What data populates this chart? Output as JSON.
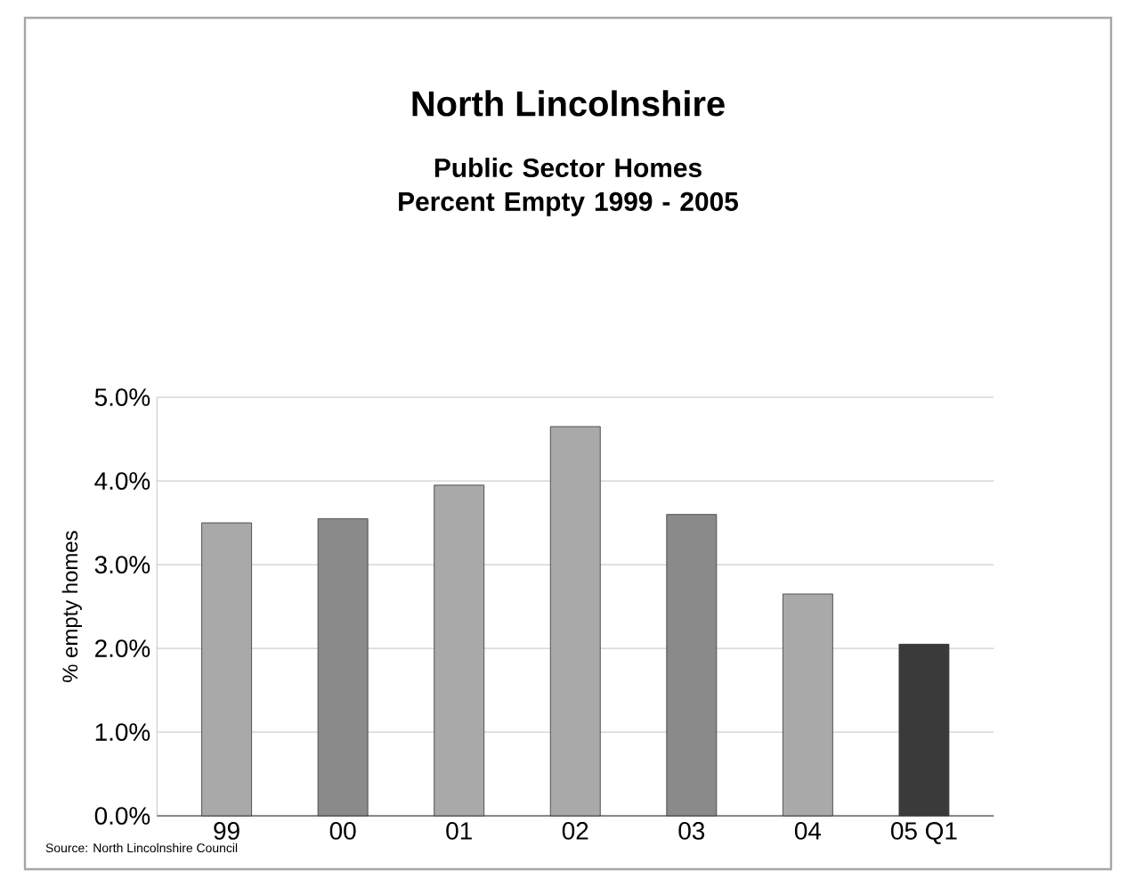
{
  "chart_data": {
    "type": "bar",
    "title": "North Lincolnshire",
    "subtitle": "Public Sector Homes Percent Empty 1999 - 2005",
    "ylabel": "% empty homes",
    "categories": [
      "99",
      "00",
      "01",
      "02",
      "03",
      "04",
      "05 Q1"
    ],
    "values": [
      3.5,
      3.55,
      3.95,
      4.65,
      3.6,
      2.65,
      2.05
    ],
    "colors": [
      "#a9a9a9",
      "#8a8a8a",
      "#a9a9a9",
      "#a9a9a9",
      "#8a8a8a",
      "#a9a9a9",
      "#3a3a3a"
    ],
    "ylim": [
      0,
      5
    ],
    "yticks": [
      {
        "value": 0,
        "label": "0.0%"
      },
      {
        "value": 1,
        "label": "1.0%"
      },
      {
        "value": 2,
        "label": "2.0%"
      },
      {
        "value": 3,
        "label": "3.0%"
      },
      {
        "value": 4,
        "label": "4.0%"
      },
      {
        "value": 5,
        "label": "5.0%"
      }
    ],
    "grid": "y",
    "annotations": [
      "Source: North Lincolnshire Council"
    ]
  }
}
